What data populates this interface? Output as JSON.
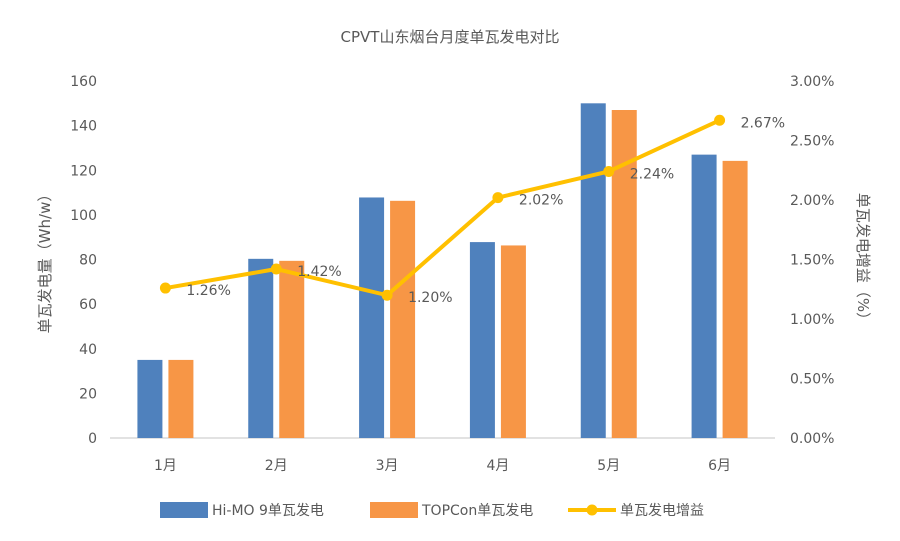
{
  "chart_data": {
    "type": "bar",
    "title": "CPVT山东烟台月度单瓦发电对比",
    "categories": [
      "1月",
      "2月",
      "3月",
      "4月",
      "5月",
      "6月"
    ],
    "ylabel": "单瓦发电量（Wh/w）",
    "y2label": "单瓦发电增益（%）",
    "ylim": [
      0,
      160
    ],
    "yticks": [
      "0",
      "20",
      "40",
      "60",
      "80",
      "100",
      "120",
      "140",
      "160"
    ],
    "y2lim": [
      0,
      3
    ],
    "y2ticks": [
      "0.00%",
      "0.50%",
      "1.00%",
      "1.50%",
      "2.00%",
      "2.50%",
      "3.00%"
    ],
    "grid": false,
    "legend": "bottom",
    "series": [
      {
        "name": "Hi-MO 9单瓦发电",
        "type": "bar",
        "axis": "left",
        "color": "#4F81BD",
        "values": [
          35,
          80.3,
          107.8,
          87.8,
          150,
          127
        ]
      },
      {
        "name": "TOPCon单瓦发电",
        "type": "bar",
        "axis": "left",
        "color": "#F79646",
        "values": [
          35,
          79.4,
          106.3,
          86.3,
          147,
          124.2
        ]
      },
      {
        "name": "单瓦发电增益",
        "type": "line",
        "axis": "right",
        "color": "#FFC000",
        "values": [
          1.26,
          1.42,
          1.2,
          2.02,
          2.24,
          2.67
        ],
        "labels": [
          "1.26%",
          "1.42%",
          "1.20%",
          "2.02%",
          "2.24%",
          "2.67%"
        ]
      }
    ]
  }
}
